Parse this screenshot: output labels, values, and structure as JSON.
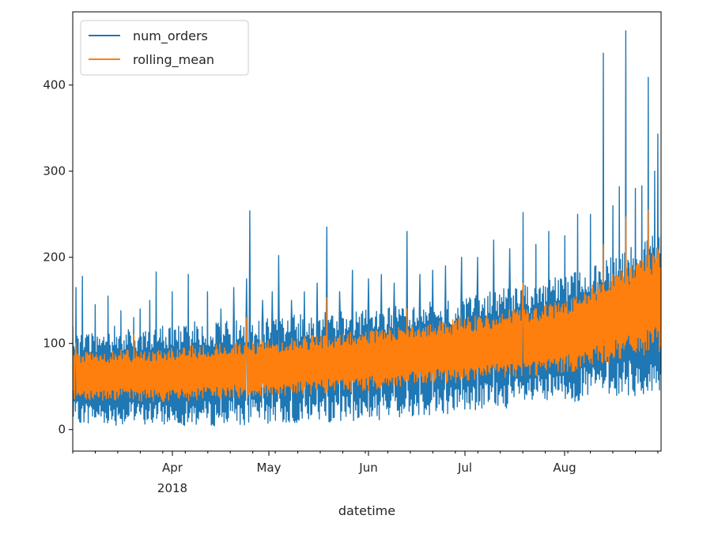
{
  "chart_data": {
    "type": "line",
    "xlabel": "datetime",
    "ylabel": "",
    "x_range": [
      "2018-03-01",
      "2018-08-31"
    ],
    "ylim": [
      -25,
      485
    ],
    "x_ticks": [
      {
        "date": "2018-04-01",
        "label": "Apr",
        "sublabel": "2018"
      },
      {
        "date": "2018-05-01",
        "label": "May",
        "sublabel": ""
      },
      {
        "date": "2018-06-01",
        "label": "Jun",
        "sublabel": ""
      },
      {
        "date": "2018-07-01",
        "label": "Jul",
        "sublabel": ""
      },
      {
        "date": "2018-08-01",
        "label": "Aug",
        "sublabel": ""
      }
    ],
    "y_ticks": [
      0,
      100,
      200,
      300,
      400
    ],
    "grid": false,
    "legend": {
      "placement": "top-left"
    },
    "series": [
      {
        "name": "num_orders",
        "color": "#1f77b4",
        "points": [
          [
            "2018-03-01",
            120
          ],
          [
            "2018-03-02",
            165
          ],
          [
            "2018-03-04",
            178
          ],
          [
            "2018-03-06",
            110
          ],
          [
            "2018-03-08",
            145
          ],
          [
            "2018-03-10",
            100
          ],
          [
            "2018-03-12",
            155
          ],
          [
            "2018-03-14",
            120
          ],
          [
            "2018-03-16",
            138
          ],
          [
            "2018-03-18",
            98
          ],
          [
            "2018-03-20",
            130
          ],
          [
            "2018-03-22",
            140
          ],
          [
            "2018-03-25",
            150
          ],
          [
            "2018-03-27",
            183
          ],
          [
            "2018-03-29",
            120
          ],
          [
            "2018-04-01",
            160
          ],
          [
            "2018-04-03",
            120
          ],
          [
            "2018-04-06",
            180
          ],
          [
            "2018-04-08",
            125
          ],
          [
            "2018-04-12",
            160
          ],
          [
            "2018-04-16",
            140
          ],
          [
            "2018-04-20",
            165
          ],
          [
            "2018-04-24",
            175
          ],
          [
            "2018-04-25",
            254
          ],
          [
            "2018-04-29",
            150
          ],
          [
            "2018-05-02",
            160
          ],
          [
            "2018-05-04",
            202
          ],
          [
            "2018-05-08",
            150
          ],
          [
            "2018-05-12",
            160
          ],
          [
            "2018-05-16",
            170
          ],
          [
            "2018-05-19",
            235
          ],
          [
            "2018-05-23",
            160
          ],
          [
            "2018-05-27",
            185
          ],
          [
            "2018-06-01",
            175
          ],
          [
            "2018-06-05",
            180
          ],
          [
            "2018-06-09",
            170
          ],
          [
            "2018-06-13",
            230
          ],
          [
            "2018-06-17",
            180
          ],
          [
            "2018-06-21",
            185
          ],
          [
            "2018-06-25",
            190
          ],
          [
            "2018-06-30",
            200
          ],
          [
            "2018-07-05",
            200
          ],
          [
            "2018-07-10",
            220
          ],
          [
            "2018-07-15",
            210
          ],
          [
            "2018-07-19",
            252
          ],
          [
            "2018-07-23",
            215
          ],
          [
            "2018-07-27",
            230
          ],
          [
            "2018-08-01",
            225
          ],
          [
            "2018-08-05",
            250
          ],
          [
            "2018-08-09",
            250
          ],
          [
            "2018-08-13",
            437
          ],
          [
            "2018-08-16",
            260
          ],
          [
            "2018-08-18",
            282
          ],
          [
            "2018-08-20",
            463
          ],
          [
            "2018-08-23",
            280
          ],
          [
            "2018-08-25",
            283
          ],
          [
            "2018-08-27",
            409
          ],
          [
            "2018-08-29",
            300
          ],
          [
            "2018-08-30",
            343
          ],
          [
            "2018-08-31",
            225
          ]
        ],
        "band_low": [
          [
            "2018-03-01",
            8
          ],
          [
            "2018-03-15",
            5
          ],
          [
            "2018-04-01",
            5
          ],
          [
            "2018-04-15",
            4
          ],
          [
            "2018-05-01",
            6
          ],
          [
            "2018-05-15",
            8
          ],
          [
            "2018-06-01",
            10
          ],
          [
            "2018-06-15",
            15
          ],
          [
            "2018-07-01",
            20
          ],
          [
            "2018-07-15",
            25
          ],
          [
            "2018-08-01",
            30
          ],
          [
            "2018-08-15",
            40
          ],
          [
            "2018-08-31",
            35
          ]
        ],
        "band_high": [
          [
            "2018-03-01",
            110
          ],
          [
            "2018-03-15",
            115
          ],
          [
            "2018-04-01",
            120
          ],
          [
            "2018-04-15",
            125
          ],
          [
            "2018-05-01",
            130
          ],
          [
            "2018-05-15",
            135
          ],
          [
            "2018-06-01",
            140
          ],
          [
            "2018-06-15",
            145
          ],
          [
            "2018-07-01",
            155
          ],
          [
            "2018-07-15",
            165
          ],
          [
            "2018-08-01",
            180
          ],
          [
            "2018-08-15",
            200
          ],
          [
            "2018-08-31",
            230
          ]
        ]
      },
      {
        "name": "rolling_mean",
        "color": "#ff7f0e",
        "points": [
          [
            "2018-03-01",
            60
          ],
          [
            "2018-03-15",
            55
          ],
          [
            "2018-04-01",
            55
          ],
          [
            "2018-04-15",
            60
          ],
          [
            "2018-05-01",
            65
          ],
          [
            "2018-05-15",
            70
          ],
          [
            "2018-06-01",
            75
          ],
          [
            "2018-06-15",
            80
          ],
          [
            "2018-07-01",
            90
          ],
          [
            "2018-07-15",
            100
          ],
          [
            "2018-08-01",
            110
          ],
          [
            "2018-08-15",
            125
          ],
          [
            "2018-08-31",
            150
          ]
        ],
        "band_low": [
          [
            "2018-03-01",
            35
          ],
          [
            "2018-04-01",
            32
          ],
          [
            "2018-05-01",
            38
          ],
          [
            "2018-06-01",
            45
          ],
          [
            "2018-07-01",
            55
          ],
          [
            "2018-08-01",
            65
          ],
          [
            "2018-08-31",
            90
          ]
        ],
        "band_high": [
          [
            "2018-03-01",
            90
          ],
          [
            "2018-04-01",
            95
          ],
          [
            "2018-05-01",
            105
          ],
          [
            "2018-06-01",
            115
          ],
          [
            "2018-07-01",
            130
          ],
          [
            "2018-08-01",
            150
          ],
          [
            "2018-08-31",
            215
          ]
        ],
        "peaks": [
          [
            "2018-03-02",
            100
          ],
          [
            "2018-03-20",
            110
          ],
          [
            "2018-04-24",
            130
          ],
          [
            "2018-05-19",
            153
          ],
          [
            "2018-06-13",
            140
          ],
          [
            "2018-07-19",
            170
          ],
          [
            "2018-08-13",
            215
          ],
          [
            "2018-08-20",
            247
          ],
          [
            "2018-08-27",
            255
          ]
        ]
      }
    ]
  }
}
